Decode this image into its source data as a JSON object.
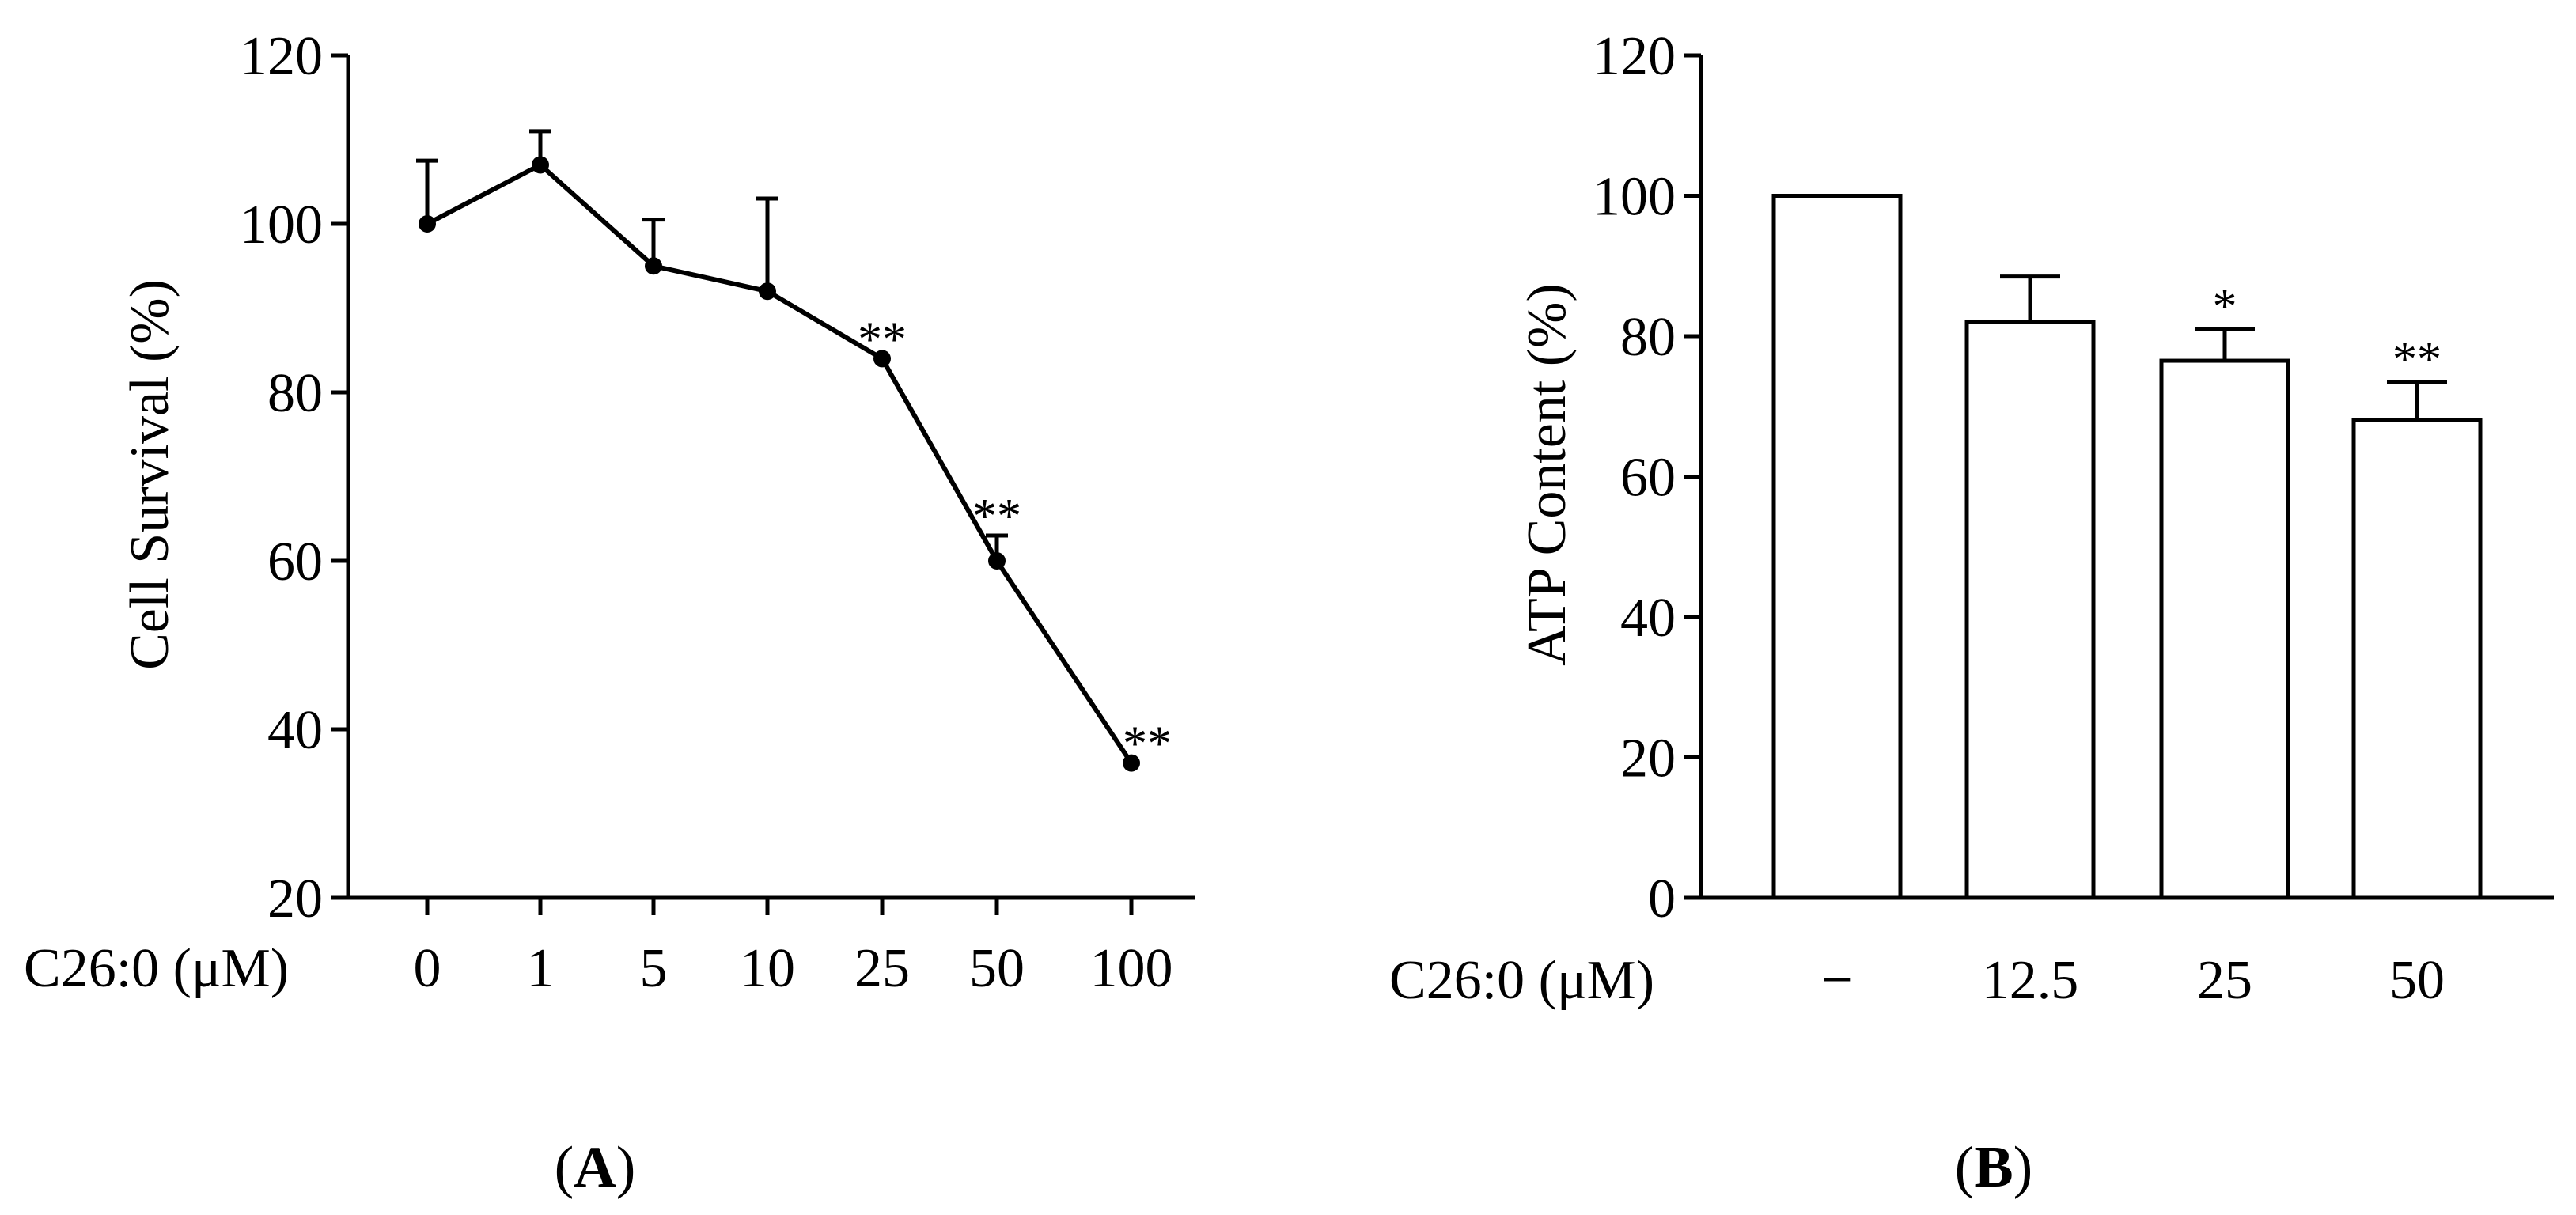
{
  "chart_data": [
    {
      "type": "line",
      "panel_label_open": "(",
      "panel_label_letter": "A",
      "panel_label_close": ")",
      "ylabel": "Cell Survival (%)",
      "x_prefix_label": "C26:0 (μM)",
      "ylim": [
        20,
        120
      ],
      "y_ticks": [
        20,
        40,
        60,
        80,
        100,
        120
      ],
      "categories": [
        "0",
        "1",
        "5",
        "10",
        "25",
        "50",
        "100"
      ],
      "series": [
        {
          "name": "Cell Survival",
          "values": [
            100,
            107,
            95,
            92,
            84,
            60,
            36
          ],
          "error_upper": [
            7.5,
            4,
            5.5,
            11,
            0,
            3,
            0
          ],
          "significance": [
            "",
            "",
            "",
            "",
            "**",
            "**",
            "**"
          ]
        }
      ]
    },
    {
      "type": "bar",
      "panel_label_open": "(",
      "panel_label_letter": "B",
      "panel_label_close": ")",
      "ylabel": "ATP Content (%)",
      "x_prefix_label": "C26:0 (μM)",
      "ylim": [
        0,
        120
      ],
      "y_ticks": [
        0,
        20,
        40,
        60,
        80,
        100,
        120
      ],
      "categories": [
        "−",
        "12.5",
        "25",
        "50"
      ],
      "series": [
        {
          "name": "ATP Content",
          "values": [
            100,
            82,
            76.5,
            68
          ],
          "error_upper": [
            0,
            6.5,
            4.5,
            5.5
          ],
          "significance": [
            "",
            "",
            "*",
            "**"
          ]
        }
      ]
    }
  ]
}
